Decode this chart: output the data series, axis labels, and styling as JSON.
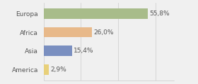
{
  "categories": [
    "Europa",
    "Africa",
    "Asia",
    "America"
  ],
  "values": [
    55.8,
    26.0,
    15.4,
    2.9
  ],
  "labels": [
    "55,8%",
    "26,0%",
    "15,4%",
    "2,9%"
  ],
  "bar_colors": [
    "#a8bc8a",
    "#e8b98a",
    "#7a8fc0",
    "#e8d07a"
  ],
  "background_color": "#f0f0f0",
  "xlim": [
    0,
    70
  ],
  "label_fontsize": 6.5,
  "category_fontsize": 6.5,
  "bar_height": 0.55
}
